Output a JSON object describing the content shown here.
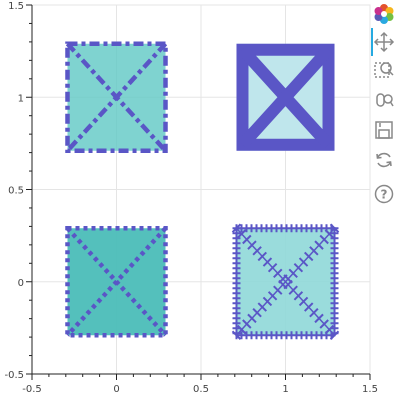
{
  "chart_data": {
    "type": "scatter",
    "marker": "square_x",
    "title": "",
    "xlabel": "",
    "ylabel": "",
    "xlim": [
      -0.5,
      1.5
    ],
    "ylim": [
      -0.5,
      1.5
    ],
    "x_ticks": [
      {
        "value": -0.5,
        "label": "-0.5"
      },
      {
        "value": 0,
        "label": "0"
      },
      {
        "value": 0.5,
        "label": "0.5"
      },
      {
        "value": 1,
        "label": "1"
      },
      {
        "value": 1.5,
        "label": "1.5"
      }
    ],
    "y_ticks": [
      {
        "value": -0.5,
        "label": "-0.5"
      },
      {
        "value": 0,
        "label": "0"
      },
      {
        "value": 0.5,
        "label": "0.5"
      },
      {
        "value": 1,
        "label": "1"
      },
      {
        "value": 1.5,
        "label": "1.5"
      }
    ],
    "grid": true,
    "points": [
      {
        "x": 0,
        "y": 1,
        "fill": "#5fc8c4",
        "line_color": "#5a56c6",
        "line_dash": "dashdot",
        "fill_alpha": 0.8
      },
      {
        "x": 1,
        "y": 1,
        "fill": "#bfe6ec",
        "line_color": "#5a56c6",
        "line_dash": "solid",
        "fill_alpha": 1.0
      },
      {
        "x": 0,
        "y": 0,
        "fill": "#4bbdb8",
        "line_color": "#5a56c6",
        "line_dash": "dotted",
        "fill_alpha": 0.95
      },
      {
        "x": 1,
        "y": 0,
        "fill": "#8fd8d8",
        "line_color": "#5a56c6",
        "line_dash": "hatched",
        "fill_alpha": 0.9
      }
    ]
  },
  "toolbar": {
    "tools": [
      {
        "name": "bokeh-logo-icon",
        "interactable": true
      },
      {
        "name": "pan-tool-icon",
        "interactable": true
      },
      {
        "name": "box-zoom-tool-icon",
        "interactable": true
      },
      {
        "name": "wheel-zoom-tool-icon",
        "interactable": true
      },
      {
        "name": "save-tool-icon",
        "interactable": true
      },
      {
        "name": "reset-tool-icon",
        "interactable": true
      },
      {
        "name": "help-tool-icon",
        "interactable": true
      }
    ],
    "accent": "#26aae1"
  }
}
